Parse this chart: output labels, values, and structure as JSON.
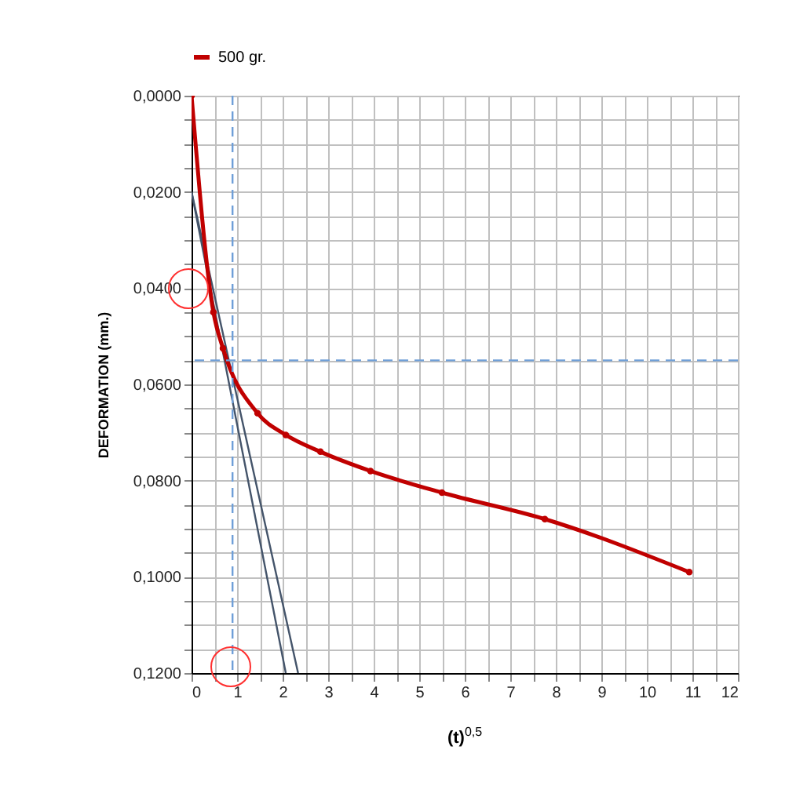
{
  "chart_data": {
    "type": "line",
    "xlabel": "(t)$^{0,5}$",
    "ylabel": "DEFORMATION (mm.)",
    "legend": "top",
    "grid": true,
    "xlim": [
      0,
      12
    ],
    "ylim": [
      0.12,
      0
    ],
    "xticks": [
      0,
      {
        "value": 0.5,
        "label": null
      },
      1,
      {
        "value": 1.5,
        "label": null
      },
      2,
      {
        "value": 2.5,
        "label": null
      },
      3,
      {
        "value": 3.5,
        "label": null
      },
      4,
      {
        "value": 4.5,
        "label": null
      },
      5,
      {
        "value": 5.5,
        "label": null
      },
      6,
      {
        "value": 6.5,
        "label": null
      },
      7,
      {
        "value": 7.5,
        "label": null
      },
      8,
      {
        "value": 8.5,
        "label": null
      },
      9,
      {
        "value": 9.5,
        "label": null
      },
      10,
      {
        "value": 10.5,
        "label": null
      },
      11,
      {
        "value": 11.5,
        "label": null
      },
      12
    ],
    "yticks": [
      {
        "value": 0,
        "label": "0,0000"
      },
      {
        "value": 0.005,
        "label": null
      },
      {
        "value": 0.01,
        "label": null
      },
      {
        "value": 0.015,
        "label": null
      },
      {
        "value": 0.02,
        "label": "0,0200"
      },
      {
        "value": 0.025,
        "label": null
      },
      {
        "value": 0.03,
        "label": null
      },
      {
        "value": 0.035,
        "label": null
      },
      {
        "value": 0.04,
        "label": "0,0400"
      },
      {
        "value": 0.045,
        "label": null
      },
      {
        "value": 0.05,
        "label": null
      },
      {
        "value": 0.055,
        "label": null
      },
      {
        "value": 0.06,
        "label": "0,0600"
      },
      {
        "value": 0.065,
        "label": null
      },
      {
        "value": 0.07,
        "label": null
      },
      {
        "value": 0.075,
        "label": null
      },
      {
        "value": 0.08,
        "label": "0,0800"
      },
      {
        "value": 0.085,
        "label": null
      },
      {
        "value": 0.09,
        "label": null
      },
      {
        "value": 0.095,
        "label": null
      },
      {
        "value": 0.1,
        "label": "0,1000"
      },
      {
        "value": 0.105,
        "label": null
      },
      {
        "value": 0.11,
        "label": null
      },
      {
        "value": 0.115,
        "label": null
      },
      {
        "value": 0.12,
        "label": "0,1200"
      }
    ],
    "series": [
      {
        "name": "500 gr.",
        "color": "#c00000",
        "marker": "circle",
        "line_style": "solid",
        "x": [
          0,
          0.48,
          0.69,
          1.45,
          2.07,
          2.83,
          3.93,
          5.5,
          7.76,
          10.93
        ],
        "values": [
          0,
          0.045,
          0.0525,
          0.066,
          0.0705,
          0.074,
          0.078,
          0.0825,
          0.088,
          0.099
        ]
      },
      {
        "color": "#44546a",
        "marker": "none",
        "line_style": "solid",
        "x": [
          0,
          2.07
        ],
        "values": [
          0.02,
          0.12
        ]
      },
      {
        "color": "#44546a",
        "marker": "none",
        "line_style": "solid",
        "x": [
          0,
          2.34
        ],
        "values": [
          0.02,
          0.12
        ]
      }
    ],
    "ref_lines": [
      {
        "axis": "x",
        "value": 0.9,
        "color": "#6f9fd8",
        "line_style": "dashed"
      },
      {
        "axis": "y",
        "value": 0.055,
        "color": "#6f9fd8",
        "line_style": "dashed"
      }
    ]
  }
}
